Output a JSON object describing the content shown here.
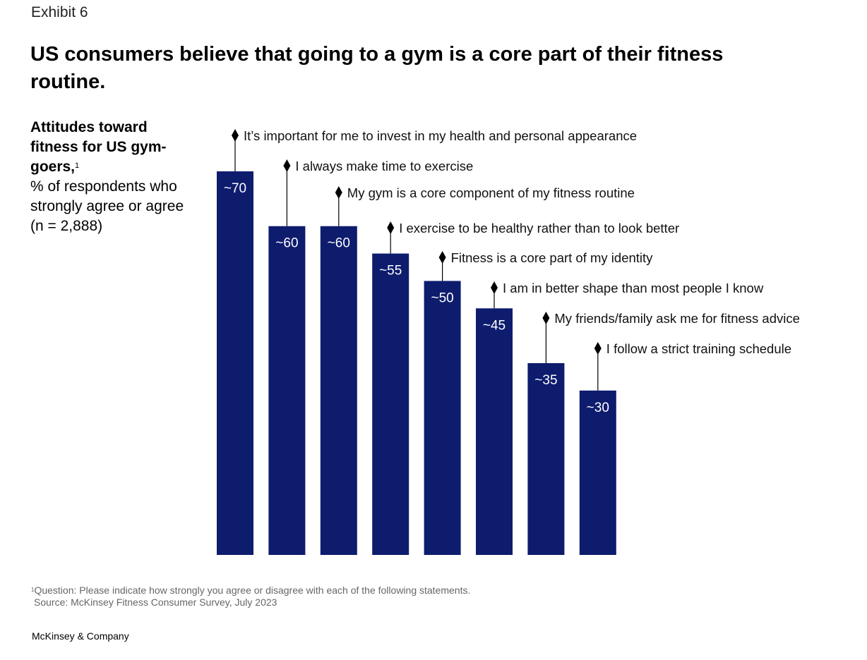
{
  "exhibit_label": "Exhibit 6",
  "title": "US consumers believe that going to a gym is a core part of their fitness routine.",
  "subtitle": {
    "bold": "Attitudes toward fitness for US gym-goers,",
    "superscript": "1",
    "normal": "% of respondents who strongly agree or agree (n = 2,888)"
  },
  "footnote": {
    "marker": "1",
    "text": "Question: Please indicate how strongly you agree or disagree with each of the following statements.",
    "source": "Source: McKinsey Fitness Consumer Survey, July 2023"
  },
  "brand": "McKinsey & Company",
  "colors": {
    "bar": "#0e1c6e",
    "bar_label": "#ffffff",
    "leader": "#000000"
  },
  "chart_data": {
    "type": "bar",
    "title": "Attitudes toward fitness for US gym-goers",
    "xlabel": "",
    "ylabel": "% of respondents who strongly agree or agree",
    "ylim": [
      0,
      70
    ],
    "grid": false,
    "categories": [
      "It’s important for me to invest in my health and personal appearance",
      "I always make time to exercise",
      "My gym is a core component of my fitness routine",
      "I exercise to be healthy rather than to look better",
      "Fitness is a core part of my identity",
      "I am in better shape than most people I know",
      "My friends/family ask me for fitness advice",
      "I follow a strict training schedule"
    ],
    "values": [
      70,
      60,
      60,
      55,
      50,
      45,
      35,
      30
    ],
    "data_labels": [
      "~70",
      "~60",
      "~60",
      "~55",
      "~50",
      "~45",
      "~35",
      "~30"
    ]
  }
}
